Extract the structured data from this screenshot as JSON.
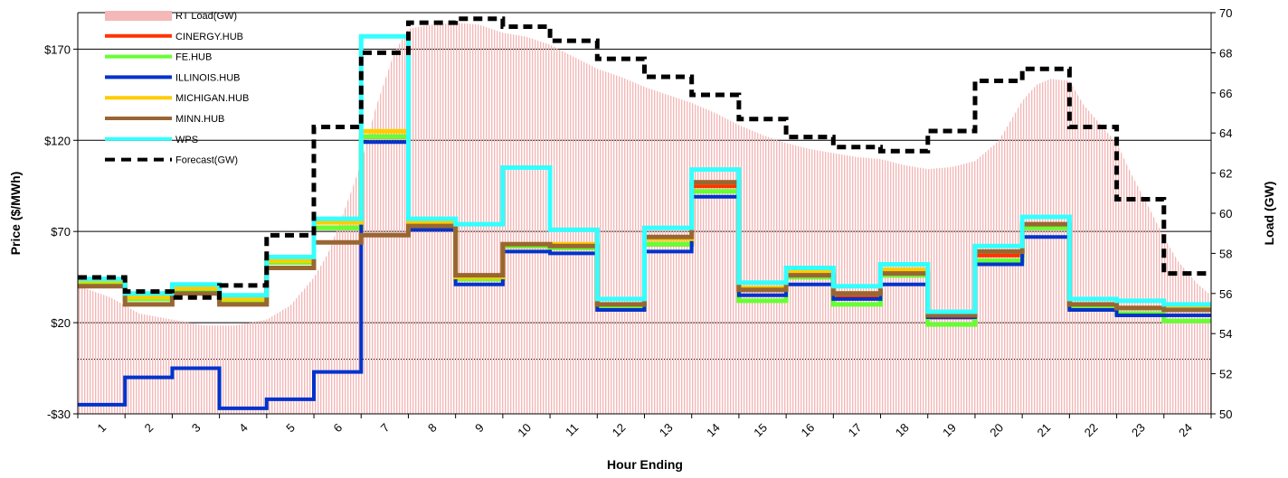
{
  "chart_data": {
    "type": "line",
    "xlabel": "Hour Ending",
    "ylabel_left": "Price ($/MWh)",
    "ylabel_right": "Load (GW)",
    "ylim_left": [
      -30,
      190
    ],
    "ylim_right": [
      50,
      70
    ],
    "left_ticks": [
      -30,
      20,
      70,
      120,
      170
    ],
    "left_tick_labels": [
      "-$30",
      "$20",
      "$70",
      "$120",
      "$170"
    ],
    "right_ticks": [
      50,
      52,
      54,
      56,
      58,
      60,
      62,
      64,
      66,
      68,
      70
    ],
    "x_categories": [
      "1",
      "2",
      "3",
      "4",
      "5",
      "6",
      "7",
      "8",
      "9",
      "10",
      "11",
      "12",
      "13",
      "14",
      "15",
      "16",
      "17",
      "18",
      "19",
      "20",
      "21",
      "22",
      "23",
      "24"
    ],
    "grid": "horizontal",
    "legend_position": "top-left",
    "rt_load": {
      "name": "RT Load(GW)",
      "color": "#f4b8b8",
      "axis": "right",
      "points": [
        [
          0.1,
          56.3
        ],
        [
          0.7,
          55.8
        ],
        [
          1.3,
          55.0
        ],
        [
          2.0,
          54.7
        ],
        [
          2.7,
          54.4
        ],
        [
          3.3,
          54.4
        ],
        [
          4.0,
          54.7
        ],
        [
          4.5,
          55.4
        ],
        [
          5.0,
          56.8
        ],
        [
          5.3,
          58.0
        ],
        [
          5.7,
          60.5
        ],
        [
          6.0,
          62.5
        ],
        [
          6.3,
          65.2
        ],
        [
          6.7,
          68.0
        ],
        [
          7.0,
          69.2
        ],
        [
          7.5,
          69.4
        ],
        [
          8.0,
          69.5
        ],
        [
          8.5,
          69.4
        ],
        [
          9.0,
          69.0
        ],
        [
          9.5,
          68.8
        ],
        [
          10.0,
          68.4
        ],
        [
          10.5,
          67.8
        ],
        [
          11.0,
          67.2
        ],
        [
          11.5,
          66.8
        ],
        [
          12.0,
          66.3
        ],
        [
          12.5,
          65.9
        ],
        [
          13.0,
          65.5
        ],
        [
          13.5,
          65.0
        ],
        [
          14.0,
          64.4
        ],
        [
          14.5,
          63.9
        ],
        [
          15.0,
          63.5
        ],
        [
          15.5,
          63.2
        ],
        [
          16.0,
          63.0
        ],
        [
          16.5,
          62.8
        ],
        [
          17.0,
          62.7
        ],
        [
          17.5,
          62.4
        ],
        [
          18.0,
          62.2
        ],
        [
          18.5,
          62.3
        ],
        [
          19.0,
          62.6
        ],
        [
          19.5,
          63.6
        ],
        [
          20.0,
          65.6
        ],
        [
          20.3,
          66.4
        ],
        [
          20.6,
          66.7
        ],
        [
          21.0,
          66.6
        ],
        [
          21.3,
          65.4
        ],
        [
          21.7,
          64.3
        ],
        [
          22.0,
          63.5
        ],
        [
          22.3,
          62.0
        ],
        [
          22.7,
          60.2
        ],
        [
          23.0,
          58.8
        ],
        [
          23.3,
          57.6
        ],
        [
          23.7,
          56.5
        ],
        [
          24.0,
          55.9
        ]
      ]
    },
    "series": [
      {
        "name": "CINERGY.HUB",
        "color": "#ff3300",
        "width": 5,
        "values": [
          42,
          33,
          38,
          32,
          53,
          72,
          122,
          73,
          44,
          62,
          61,
          29,
          63,
          95,
          38,
          45,
          35,
          46,
          23,
          57,
          72,
          29,
          28,
          27
        ]
      },
      {
        "name": "FE.HUB",
        "color": "#66ff33",
        "width": 5,
        "values": [
          42,
          33,
          38,
          32,
          53,
          72,
          122,
          73,
          44,
          62,
          61,
          29,
          63,
          92,
          32,
          45,
          30,
          46,
          19,
          54,
          72,
          29,
          25,
          21
        ]
      },
      {
        "name": "ILLINOIS.HUB",
        "color": "#0033cc",
        "width": 4,
        "values": [
          -25,
          -10,
          -5,
          -27,
          -22,
          -7,
          119,
          71,
          41,
          59,
          58,
          27,
          59,
          89,
          35,
          41,
          33,
          41,
          23,
          52,
          67,
          27,
          24,
          24
        ]
      },
      {
        "name": "MICHIGAN.HUB",
        "color": "#ffcc00",
        "width": 5,
        "values": [
          43,
          34,
          39,
          33,
          54,
          75,
          125,
          75,
          45,
          63,
          63,
          30,
          66,
          97,
          39,
          48,
          36,
          49,
          25,
          59,
          74,
          30,
          28,
          28
        ]
      },
      {
        "name": "MINN.HUB",
        "color": "#996633",
        "width": 5,
        "values": [
          40,
          30,
          36,
          30,
          50,
          64,
          68,
          73,
          46,
          63,
          62,
          30,
          67,
          97,
          38,
          46,
          36,
          47,
          24,
          59,
          74,
          30,
          28,
          27
        ]
      },
      {
        "name": "WPS",
        "color": "#33ffff",
        "width": 5,
        "values": [
          44,
          36,
          41,
          35,
          56,
          77,
          177,
          77,
          74,
          105,
          71,
          33,
          72,
          104,
          42,
          50,
          40,
          52,
          26,
          62,
          78,
          33,
          32,
          30
        ]
      }
    ],
    "forecast": {
      "name": "Forecast(GW)",
      "color": "#000000",
      "axis": "right",
      "values": [
        56.8,
        56.1,
        55.8,
        56.4,
        58.9,
        64.3,
        68.0,
        69.5,
        69.7,
        69.3,
        68.6,
        67.7,
        66.8,
        65.9,
        64.7,
        63.8,
        63.3,
        63.1,
        64.1,
        66.6,
        67.2,
        64.3,
        60.7,
        57.0
      ]
    },
    "legend": [
      "RT Load(GW)",
      "CINERGY.HUB",
      "FE.HUB",
      "ILLINOIS.HUB",
      "MICHIGAN.HUB",
      "MINN.HUB",
      "WPS",
      "Forecast(GW)"
    ]
  }
}
